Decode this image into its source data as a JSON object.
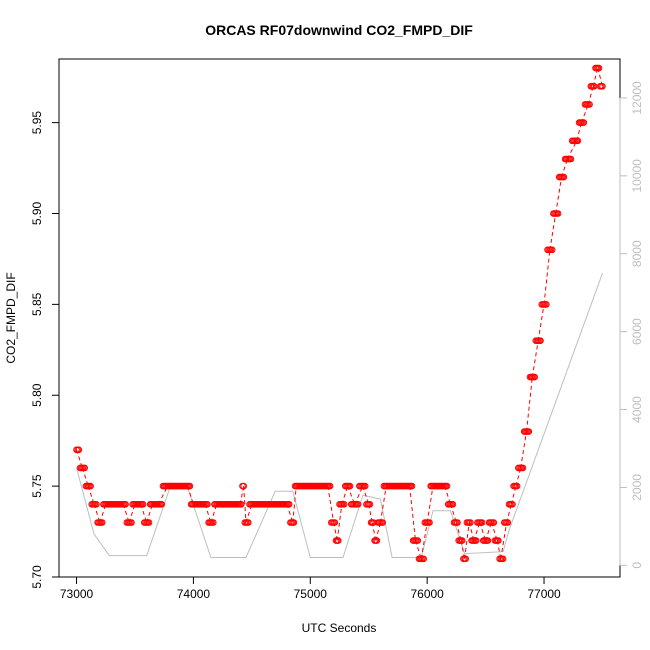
{
  "chart_data": {
    "type": "scatter",
    "title": "ORCAS RF07downwind CO2_FMPD_DIF",
    "xlabel": "UTC Seconds",
    "ylabel": "CO2_FMPD_DIF",
    "xlim": [
      72850,
      77650
    ],
    "ylim": [
      5.7,
      5.985
    ],
    "x_ticks": [
      73000,
      74000,
      75000,
      76000,
      77000
    ],
    "y_ticks": [
      5.7,
      5.75,
      5.8,
      5.85,
      5.9,
      5.95
    ],
    "y_tick_labels": [
      "5.70",
      "5.75",
      "5.80",
      "5.85",
      "5.90",
      "5.95"
    ],
    "y2_ticks": [
      0,
      2000,
      4000,
      6000,
      8000,
      10000,
      12000
    ],
    "y2lim": [
      -300,
      13000
    ],
    "colors": {
      "primary": "#ff0000",
      "secondary": "#bebebe"
    },
    "series": [
      {
        "name": "CO2_FMPD_DIF",
        "style": "points+dashed",
        "segments": [
          [
            73000,
            5.77
          ],
          [
            73050,
            5.76
          ],
          [
            73100,
            5.75
          ],
          [
            73150,
            5.74
          ],
          [
            73200,
            5.73
          ],
          [
            73250,
            5.74
          ],
          [
            73300,
            5.74
          ],
          [
            73350,
            5.74
          ],
          [
            73400,
            5.74
          ],
          [
            73450,
            5.73
          ],
          [
            73500,
            5.74
          ],
          [
            73550,
            5.74
          ],
          [
            73600,
            5.73
          ],
          [
            73650,
            5.74
          ],
          [
            73700,
            5.74
          ],
          [
            73780,
            5.75
          ],
          [
            73850,
            5.75
          ],
          [
            73950,
            5.75
          ],
          [
            74000,
            5.74
          ],
          [
            74100,
            5.74
          ],
          [
            74150,
            5.73
          ],
          [
            74200,
            5.74
          ],
          [
            74300,
            5.74
          ],
          [
            74400,
            5.74
          ],
          [
            74430,
            5.75
          ],
          [
            74450,
            5.73
          ],
          [
            74500,
            5.74
          ],
          [
            74600,
            5.74
          ],
          [
            74700,
            5.74
          ],
          [
            74800,
            5.74
          ],
          [
            74850,
            5.73
          ],
          [
            74880,
            5.75
          ],
          [
            74950,
            5.75
          ],
          [
            75050,
            5.75
          ],
          [
            75150,
            5.75
          ],
          [
            75200,
            5.73
          ],
          [
            75230,
            5.72
          ],
          [
            75270,
            5.74
          ],
          [
            75320,
            5.75
          ],
          [
            75380,
            5.74
          ],
          [
            75450,
            5.75
          ],
          [
            75500,
            5.74
          ],
          [
            75530,
            5.73
          ],
          [
            75560,
            5.72
          ],
          [
            75600,
            5.73
          ],
          [
            75650,
            5.75
          ],
          [
            75750,
            5.75
          ],
          [
            75850,
            5.75
          ],
          [
            75900,
            5.72
          ],
          [
            75950,
            5.71
          ],
          [
            76000,
            5.73
          ],
          [
            76050,
            5.75
          ],
          [
            76150,
            5.75
          ],
          [
            76200,
            5.74
          ],
          [
            76250,
            5.73
          ],
          [
            76290,
            5.72
          ],
          [
            76320,
            5.71
          ],
          [
            76360,
            5.73
          ],
          [
            76400,
            5.72
          ],
          [
            76450,
            5.73
          ],
          [
            76500,
            5.72
          ],
          [
            76550,
            5.73
          ],
          [
            76600,
            5.72
          ],
          [
            76630,
            5.71
          ],
          [
            76680,
            5.73
          ],
          [
            76720,
            5.74
          ],
          [
            76760,
            5.75
          ],
          [
            76800,
            5.76
          ],
          [
            76850,
            5.78
          ],
          [
            76900,
            5.81
          ],
          [
            76950,
            5.83
          ],
          [
            77000,
            5.85
          ],
          [
            77050,
            5.88
          ],
          [
            77100,
            5.9
          ],
          [
            77150,
            5.92
          ],
          [
            77200,
            5.93
          ],
          [
            77280,
            5.94
          ],
          [
            77320,
            5.95
          ],
          [
            77380,
            5.96
          ],
          [
            77420,
            5.97
          ],
          [
            77460,
            5.98
          ],
          [
            77500,
            5.97
          ]
        ]
      },
      {
        "name": "secondary (right axis)",
        "style": "line",
        "points": [
          [
            73000,
            2500
          ],
          [
            73150,
            800
          ],
          [
            73280,
            250
          ],
          [
            73600,
            250
          ],
          [
            73800,
            2000
          ],
          [
            73950,
            2000
          ],
          [
            74150,
            200
          ],
          [
            74450,
            200
          ],
          [
            74700,
            1900
          ],
          [
            74850,
            1900
          ],
          [
            75000,
            200
          ],
          [
            75280,
            200
          ],
          [
            75450,
            1800
          ],
          [
            75600,
            1700
          ],
          [
            75700,
            200
          ],
          [
            75950,
            200
          ],
          [
            76050,
            1400
          ],
          [
            76200,
            1400
          ],
          [
            76320,
            300
          ],
          [
            76320,
            300
          ],
          [
            76650,
            350
          ],
          [
            76700,
            900
          ],
          [
            77500,
            7500
          ]
        ]
      }
    ]
  }
}
